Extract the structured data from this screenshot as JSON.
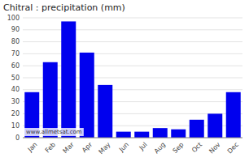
{
  "chart_data": {
    "type": "bar",
    "title": "Chitral : precipitation (mm)",
    "categories": [
      "Jan",
      "Feb",
      "Mar",
      "Apr",
      "May",
      "Jun",
      "Jul",
      "Aug",
      "Sep",
      "Oct",
      "Nov",
      "Dec"
    ],
    "values": [
      38,
      63,
      97,
      71,
      44,
      5,
      5,
      8,
      7,
      15,
      20,
      38
    ],
    "color": "#0000ee",
    "ylim": [
      0,
      100
    ],
    "yticks": [
      0,
      10,
      20,
      30,
      40,
      50,
      60,
      70,
      80,
      90,
      100
    ],
    "grid": true,
    "annotations": [
      "www.allmetsat.com"
    ]
  }
}
